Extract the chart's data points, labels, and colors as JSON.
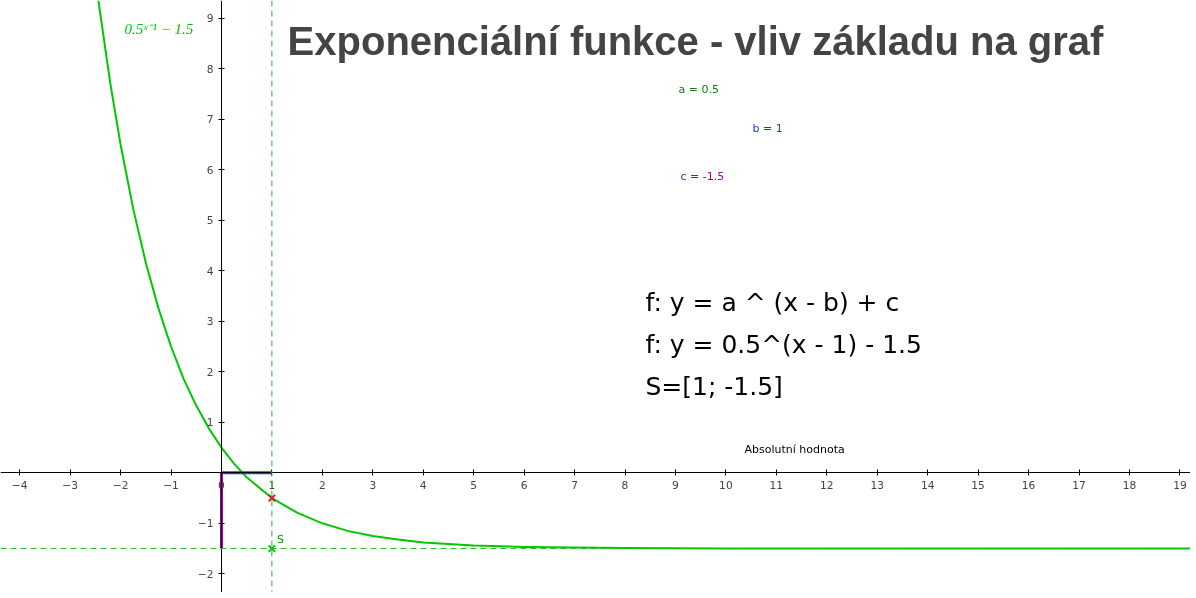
{
  "chart_data": {
    "type": "line",
    "title": "Exponenciální funkce - vliv základu na graf",
    "series": [
      {
        "name": "0.5ˣ⁻¹ − 1.5",
        "color": "#00c800",
        "x": [
          -2.44,
          -2.2,
          -2,
          -1.75,
          -1.5,
          -1.25,
          -1,
          -0.75,
          -0.5,
          -0.25,
          0,
          0.25,
          0.5,
          1,
          1.5,
          2,
          2.5,
          3,
          3.5,
          4,
          5,
          6,
          7,
          8,
          10,
          19.2
        ],
        "values": [
          9.35,
          7.69,
          6.5,
          5.23,
          4.16,
          3.26,
          2.5,
          1.86,
          1.33,
          0.88,
          0.5,
          0.18,
          -0.09,
          -0.5,
          -0.79,
          -1,
          -1.15,
          -1.25,
          -1.32,
          -1.38,
          -1.44,
          -1.47,
          -1.48,
          -1.49,
          -1.5,
          -1.5
        ]
      },
      {
        "color": "#1f3fd0",
        "x": [
          0,
          1
        ],
        "values": [
          0,
          0
        ]
      },
      {
        "color": "#a000a0",
        "x": [
          0,
          0
        ],
        "values": [
          0,
          -1.5
        ]
      },
      {
        "type": "scatter",
        "marker": "cross",
        "color": "#00c800",
        "x": [
          1
        ],
        "values": [
          -1.5
        ]
      },
      {
        "type": "scatter",
        "marker": "cross",
        "color": "#d02020",
        "x": [
          1
        ],
        "values": [
          -0.5
        ]
      }
    ],
    "xlim": [
      -4.38,
      19.21
    ],
    "ylim": [
      -2.37,
      9.35
    ],
    "xticks": [
      -4,
      -3,
      -2,
      -1,
      0,
      1,
      2,
      3,
      4,
      5,
      6,
      7,
      8,
      9,
      10,
      11,
      12,
      13,
      14,
      15,
      16,
      17,
      18,
      19
    ],
    "yticks": [
      -2,
      -1,
      1,
      2,
      3,
      4,
      5,
      6,
      7,
      8,
      9
    ],
    "ref_lines": [
      {
        "axis": "x",
        "value": 1,
        "color": "#22bb22",
        "line_style": "dashed"
      },
      {
        "axis": "y",
        "value": -1.5,
        "color": "#22bb22",
        "line_style": "dashed"
      }
    ],
    "annotations": [
      "a = 0.5",
      "b = 1",
      "c = -1.5",
      "f: y = a ^ (x - b) + c",
      "f: y = 0.5^(x - 1) - 1.5",
      "S=[1; -1.5]",
      "Absolutní hodnota",
      {
        "text": "S",
        "x": 1,
        "y": -1.5
      }
    ],
    "grid": false,
    "line_style": "solid"
  }
}
